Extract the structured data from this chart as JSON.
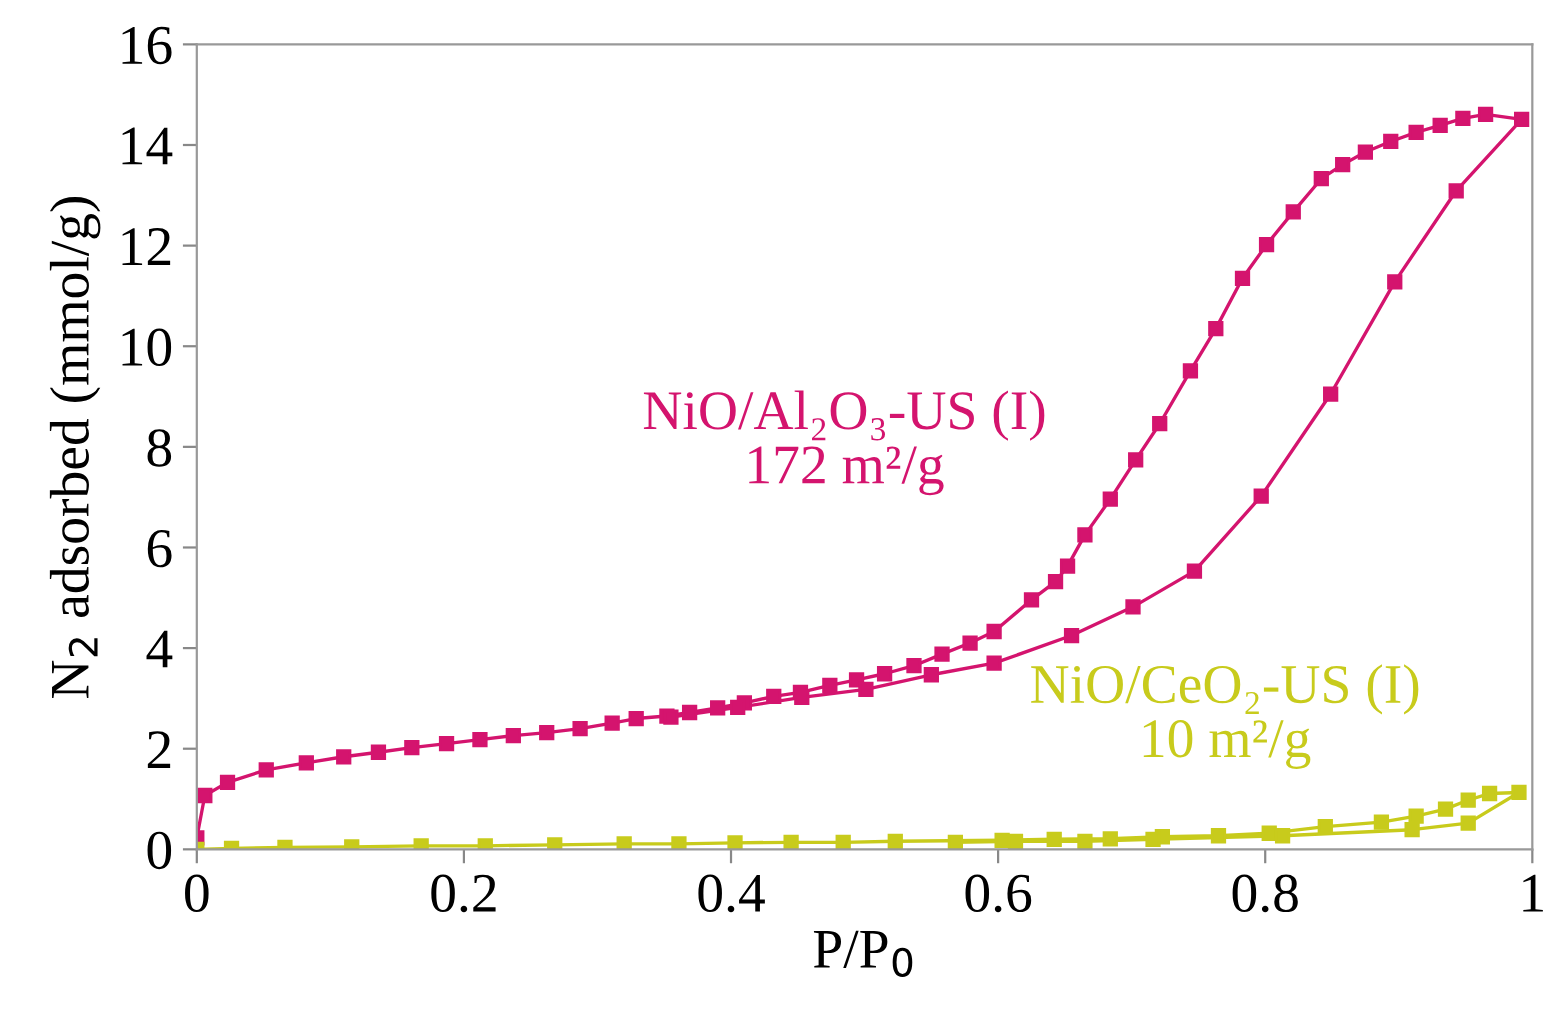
{
  "chart_data": {
    "type": "line",
    "xlabel": "P/P$_{0}$",
    "ylabel": "N$_{2}$ adsorbed (mmol/g)",
    "xlim": [
      0,
      1
    ],
    "ylim": [
      0,
      16
    ],
    "xticks": [
      0,
      0.2,
      0.4,
      0.6,
      0.8,
      1
    ],
    "yticks": [
      0,
      2,
      4,
      6,
      8,
      10,
      12,
      14,
      16
    ],
    "grid": false,
    "legend": false,
    "marker": "square",
    "line_style": "solid",
    "series": [
      {
        "name": "NiO/Al₂O₃-US (I)\n172 m²/g",
        "color": "#d4146e",
        "x": [
          0,
          0.006,
          0.023,
          0.052,
          0.082,
          0.11,
          0.136,
          0.161,
          0.187,
          0.212,
          0.237,
          0.262,
          0.287,
          0.311,
          0.329,
          0.352,
          0.369,
          0.39,
          0.41,
          0.432,
          0.452,
          0.474,
          0.494,
          0.515,
          0.537,
          0.558,
          0.579,
          0.597,
          0.625,
          0.643,
          0.652,
          0.665,
          0.684,
          0.703,
          0.721,
          0.744,
          0.763,
          0.783,
          0.801,
          0.821,
          0.842,
          0.858,
          0.875,
          0.894,
          0.913,
          0.931,
          0.948,
          0.965,
          0.992,
          0.943,
          0.897,
          0.849,
          0.797,
          0.747,
          0.701,
          0.655,
          0.597,
          0.55,
          0.501,
          0.453,
          0.405,
          0.355
        ],
        "values": [
          0.23,
          1.07,
          1.33,
          1.58,
          1.72,
          1.84,
          1.93,
          2.02,
          2.1,
          2.18,
          2.26,
          2.32,
          2.4,
          2.51,
          2.6,
          2.65,
          2.72,
          2.81,
          2.91,
          3.04,
          3.12,
          3.26,
          3.37,
          3.49,
          3.65,
          3.88,
          4.1,
          4.33,
          4.96,
          5.32,
          5.63,
          6.25,
          6.96,
          7.74,
          8.46,
          9.51,
          10.35,
          11.35,
          12.02,
          12.67,
          13.33,
          13.61,
          13.86,
          14.07,
          14.25,
          14.39,
          14.53,
          14.61,
          14.51,
          13.09,
          11.28,
          9.05,
          7.02,
          5.53,
          4.82,
          4.25,
          3.7,
          3.47,
          3.18,
          3.02,
          2.82,
          2.63
        ]
      },
      {
        "name": "NiO/CeO₂-US (I)\n10 m²/g",
        "color": "#c8cb1c",
        "x": [
          0,
          0.026,
          0.066,
          0.116,
          0.168,
          0.216,
          0.268,
          0.32,
          0.361,
          0.403,
          0.445,
          0.484,
          0.523,
          0.603,
          0.642,
          0.684,
          0.723,
          0.765,
          0.803,
          0.845,
          0.887,
          0.913,
          0.935,
          0.952,
          0.968,
          0.99,
          0.952,
          0.91,
          0.813,
          0.716,
          0.665,
          0.613,
          0.568
        ],
        "values": [
          0,
          0.02,
          0.04,
          0.05,
          0.07,
          0.07,
          0.09,
          0.11,
          0.11,
          0.13,
          0.14,
          0.14,
          0.16,
          0.18,
          0.2,
          0.21,
          0.25,
          0.27,
          0.32,
          0.45,
          0.54,
          0.66,
          0.8,
          0.98,
          1.11,
          1.13,
          0.52,
          0.39,
          0.27,
          0.2,
          0.16,
          0.16,
          0.14
        ]
      }
    ]
  }
}
